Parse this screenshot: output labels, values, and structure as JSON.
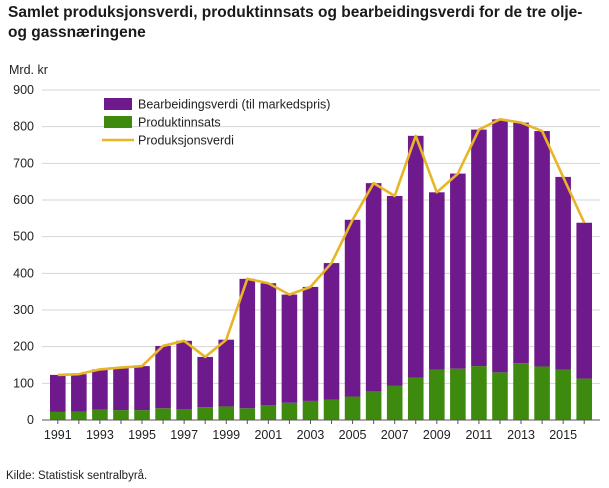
{
  "title": "Samlet produksjonsverdi, produktinnsats og bearbeidingsverdi for de tre olje- og gassnæringene",
  "unit_label": "Mrd. kr",
  "source": "Kilde: Statistisk sentralbyrå.",
  "chart_data": {
    "type": "bar",
    "stacked": true,
    "ylim": [
      0,
      900
    ],
    "y_ticks": [
      "0",
      "100",
      "200",
      "300",
      "400",
      "500",
      "600",
      "700",
      "800",
      "900"
    ],
    "x_ticks": [
      "1991",
      "1993",
      "1995",
      "1997",
      "1999",
      "2001",
      "2003",
      "2005",
      "2007",
      "2009",
      "2011",
      "2013",
      "2015"
    ],
    "categories": [
      1991,
      1992,
      1993,
      1994,
      1995,
      1996,
      1997,
      1998,
      1999,
      2000,
      2001,
      2002,
      2003,
      2004,
      2005,
      2006,
      2007,
      2008,
      2009,
      2010,
      2011,
      2012,
      2013,
      2014,
      2015,
      2016
    ],
    "grid": true,
    "legend_position": "top-left",
    "series": [
      {
        "name": "Bearbeidingsverdi (til markedspris)",
        "kind": "bar",
        "color": "#6f1a8c",
        "values": [
          101,
          102,
          110,
          116,
          120,
          170,
          186,
          137,
          182,
          353,
          333,
          295,
          311,
          372,
          482,
          568,
          518,
          660,
          484,
          532,
          645,
          690,
          656,
          642,
          526,
          425
        ]
      },
      {
        "name": "Produktinnsats",
        "kind": "bar",
        "color": "#3d8a0e",
        "values": [
          22,
          23,
          28,
          27,
          27,
          32,
          30,
          35,
          37,
          32,
          40,
          47,
          52,
          56,
          64,
          78,
          93,
          115,
          137,
          140,
          147,
          130,
          155,
          146,
          137,
          113
        ]
      },
      {
        "name": "Produksjonsverdi",
        "kind": "line",
        "color": "#e8b527",
        "values": [
          123,
          125,
          138,
          143,
          147,
          202,
          216,
          172,
          219,
          385,
          373,
          342,
          363,
          428,
          546,
          646,
          611,
          775,
          621,
          672,
          792,
          820,
          811,
          788,
          663,
          538
        ]
      }
    ]
  }
}
